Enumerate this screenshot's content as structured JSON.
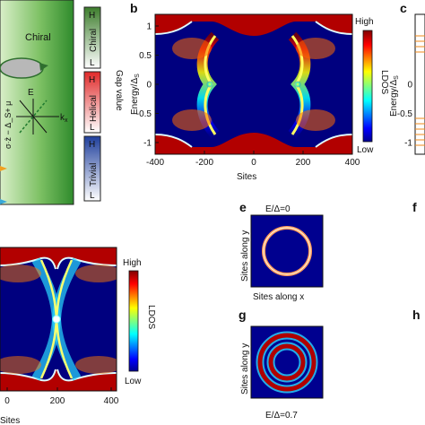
{
  "panels": {
    "a_partial": {
      "region_label": "Chiral",
      "axis_e": "E",
      "axis_kx": "k",
      "axis_kx_sub": "x",
      "rotated_label": "σ·ẑ − Δ_S+ μ"
    },
    "a_gap": {
      "axis_label": "Gap value",
      "blocks": [
        {
          "name": "Chiral",
          "high": "H",
          "low": "L",
          "color_top": "#3d7d2c",
          "color_bottom": "#ffffff"
        },
        {
          "name": "Helical",
          "high": "H",
          "low": "L",
          "color_top": "#e02a2a",
          "color_bottom": "#ffffff"
        },
        {
          "name": "Trivial",
          "high": "H",
          "low": "L",
          "color_top": "#1f3f9c",
          "color_bottom": "#ffffff"
        }
      ]
    },
    "b": {
      "label": "b",
      "ylabel": "Energy/Δ",
      "ylabel_sub": "S",
      "xlabel": "Sites",
      "colorbar": {
        "title": "LDOS",
        "high": "High",
        "low": "Low"
      }
    },
    "c": {
      "label": "c",
      "ylabel": "Energy/Δ",
      "ylabel_sub": "S"
    },
    "d_partial": {
      "xlabel": "Sites",
      "colorbar": {
        "title": "LDOS",
        "high": "High",
        "low": "Low"
      }
    },
    "e": {
      "label": "e",
      "title": "E/Δ=0",
      "ylabel": "Sites along y",
      "xlabel": "Sites along x"
    },
    "f": {
      "label": "f"
    },
    "g": {
      "label": "g",
      "title": "E/Δ=0.7",
      "ylabel": "Sites along y"
    },
    "h": {
      "label": "h"
    }
  },
  "chart_data": [
    {
      "type": "heatmap",
      "panel": "b",
      "xlabel": "Sites",
      "ylabel": "Energy/Δs",
      "xlim": [
        -400,
        400
      ],
      "ylim": [
        -1.2,
        1.2
      ],
      "xticks": [
        "-400",
        "-200",
        "0",
        "200",
        "400"
      ],
      "yticks": [
        "1",
        "0.5",
        "0",
        "-0.5",
        "-1"
      ],
      "colormap": "jet",
      "colorbar_labels": [
        "High",
        "Low"
      ]
    },
    {
      "type": "heatmap",
      "panel": "c (partial)",
      "yticks": [
        "0",
        "-0.5",
        "-1"
      ]
    },
    {
      "type": "heatmap",
      "panel": "d (partial)",
      "xlabel": "Sites",
      "xticks": [
        "0",
        "200",
        "400",
        "0",
        "200",
        "400"
      ],
      "colormap": "jet",
      "colorbar_labels": [
        "High",
        "Low"
      ]
    },
    {
      "type": "heatmap",
      "panel": "e",
      "title": "E/Δ=0",
      "rings": 1
    },
    {
      "type": "heatmap",
      "panel": "g",
      "title": "E/Δ=0.7",
      "rings": 2
    }
  ]
}
